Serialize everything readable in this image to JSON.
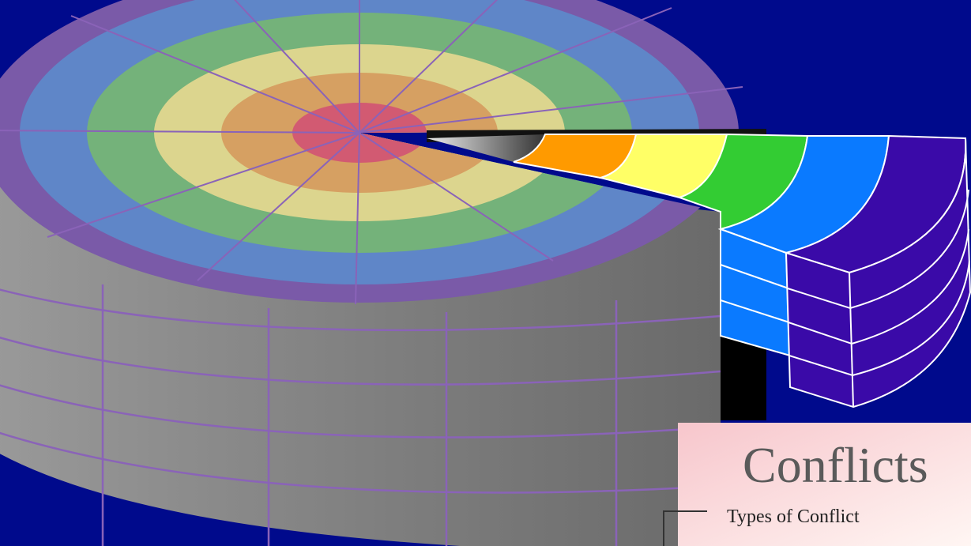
{
  "title": "Conflicts",
  "subtitle": "Types of Conflict"
}
